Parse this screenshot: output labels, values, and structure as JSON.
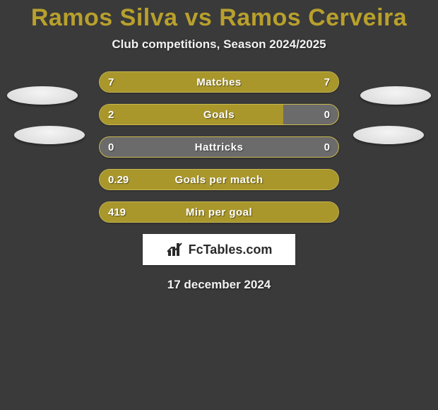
{
  "colors": {
    "background": "#3a3a3a",
    "title": "#b8a02c",
    "subtitle": "#f2f2f2",
    "bar_fill": "#a9972c",
    "bar_empty": "#6b6b6b",
    "bar_border": "#c9b84f",
    "value_text": "#ffffff",
    "metric_text": "#ffffff",
    "avatar_light": "#f4f4f4",
    "avatar_dark": "#d6d6d6",
    "brand_bg": "#ffffff",
    "brand_text": "#2a2a2a",
    "brand_icon": "#2a2a2a",
    "date_text": "#f2f2f2"
  },
  "typography": {
    "title_fontsize": 34,
    "subtitle_fontsize": 17,
    "value_fontsize": 15,
    "metric_fontsize": 15,
    "brand_fontsize": 18,
    "date_fontsize": 17
  },
  "header": {
    "title": "Ramos Silva vs Ramos Cerveira",
    "subtitle": "Club competitions, Season 2024/2025"
  },
  "rows": [
    {
      "metric": "Matches",
      "left_val": "7",
      "right_val": "7",
      "left_pct": 50,
      "right_pct": 50
    },
    {
      "metric": "Goals",
      "left_val": "2",
      "right_val": "0",
      "left_pct": 77,
      "right_pct": 0
    },
    {
      "metric": "Hattricks",
      "left_val": "0",
      "right_val": "0",
      "left_pct": 0,
      "right_pct": 0
    },
    {
      "metric": "Goals per match",
      "left_val": "0.29",
      "right_val": "",
      "left_pct": 100,
      "right_pct": 0
    },
    {
      "metric": "Min per goal",
      "left_val": "419",
      "right_val": "",
      "left_pct": 100,
      "right_pct": 0
    }
  ],
  "brand": {
    "text": "FcTables.com"
  },
  "footer": {
    "date": "17 december 2024"
  }
}
